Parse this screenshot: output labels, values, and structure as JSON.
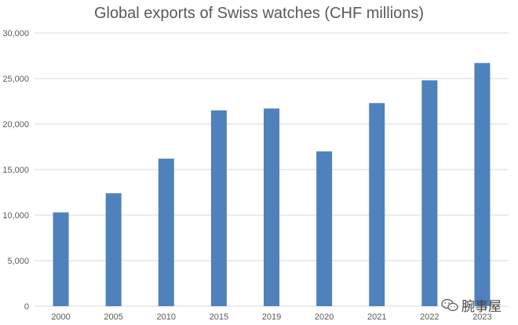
{
  "chart_data": {
    "type": "bar",
    "title": "Global exports of Swiss watches (CHF millions)",
    "categories": [
      "2000",
      "2005",
      "2010",
      "2015",
      "2019",
      "2020",
      "2021",
      "2022",
      "2023"
    ],
    "values": [
      10300,
      12400,
      16200,
      21500,
      21700,
      17000,
      22300,
      24800,
      26700
    ],
    "ylim": [
      0,
      30000
    ],
    "yticks": [
      0,
      5000,
      10000,
      15000,
      20000,
      25000,
      30000
    ],
    "ytick_labels": [
      "0",
      "5,000",
      "10,000",
      "15,000",
      "20,000",
      "25,000",
      "30,000"
    ],
    "grid": true,
    "bar_color": "#4F81BD",
    "grid_color": "#D9D9D9"
  },
  "watermark": {
    "text": "腕事屋",
    "icon": "wechat-icon"
  }
}
